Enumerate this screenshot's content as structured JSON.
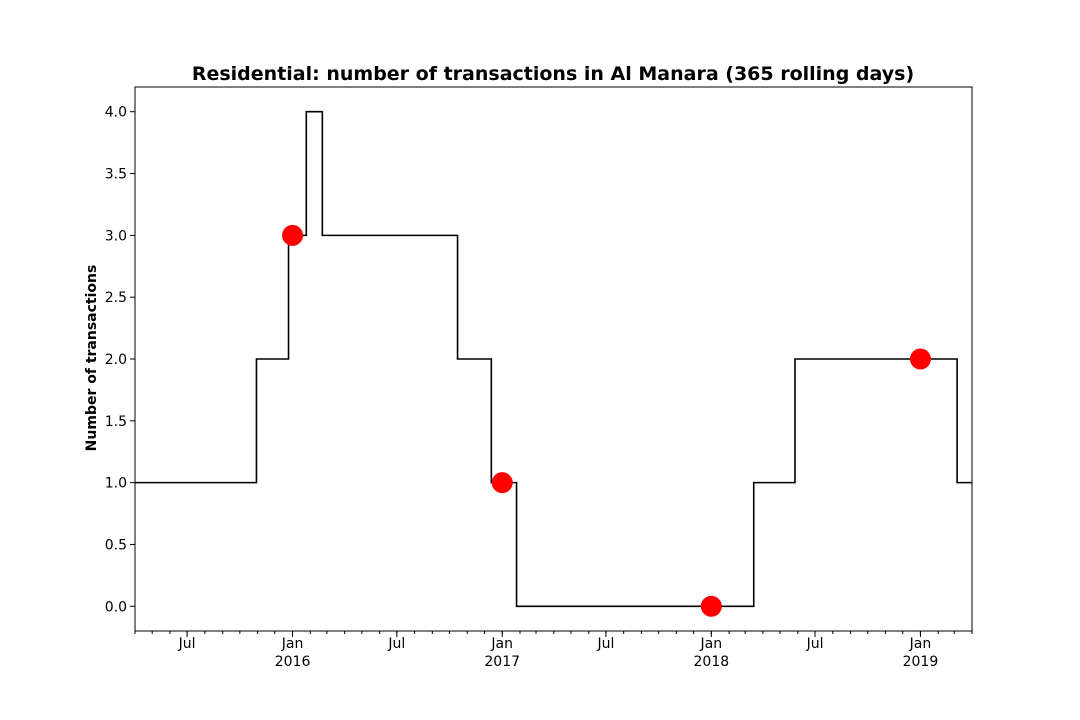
{
  "chart_data": {
    "type": "line",
    "title": "Residential: number of transactions in Al Manara (365 rolling days)",
    "xlabel": "",
    "ylabel": "Number of transactions",
    "xlim": [
      "2015-04-01",
      "2019-04-01"
    ],
    "ylim": [
      -0.2,
      4.2
    ],
    "grid": false,
    "legend": "none",
    "y_ticks": [
      "0.0",
      "0.5",
      "1.0",
      "1.5",
      "2.0",
      "2.5",
      "3.0",
      "3.5",
      "4.0"
    ],
    "x_ticks": [
      {
        "date": "2015-07-01",
        "label": "Jul",
        "sublabel": ""
      },
      {
        "date": "2016-01-01",
        "label": "Jan",
        "sublabel": "2016"
      },
      {
        "date": "2016-07-01",
        "label": "Jul",
        "sublabel": ""
      },
      {
        "date": "2017-01-01",
        "label": "Jan",
        "sublabel": "2017"
      },
      {
        "date": "2017-07-01",
        "label": "Jul",
        "sublabel": ""
      },
      {
        "date": "2018-01-01",
        "label": "Jan",
        "sublabel": "2018"
      },
      {
        "date": "2018-07-01",
        "label": "Jul",
        "sublabel": ""
      },
      {
        "date": "2019-01-01",
        "label": "Jan",
        "sublabel": "2019"
      }
    ],
    "series": [
      {
        "style": "step",
        "color": "#000000",
        "x": [
          "2015-04-01",
          "2015-10-30",
          "2015-12-25",
          "2016-01-25",
          "2016-02-22",
          "2016-10-15",
          "2016-12-13",
          "2017-01-26",
          "2018-03-16",
          "2018-05-27",
          "2019-03-06",
          "2019-04-01"
        ],
        "y": [
          1,
          2,
          3,
          4,
          3,
          2,
          1,
          0,
          1,
          2,
          1,
          1
        ]
      },
      {
        "style": "markers",
        "color": "#ff0000",
        "x": [
          "2016-01-01",
          "2017-01-01",
          "2018-01-01",
          "2019-01-01"
        ],
        "y": [
          3,
          1,
          0,
          2
        ]
      }
    ]
  }
}
